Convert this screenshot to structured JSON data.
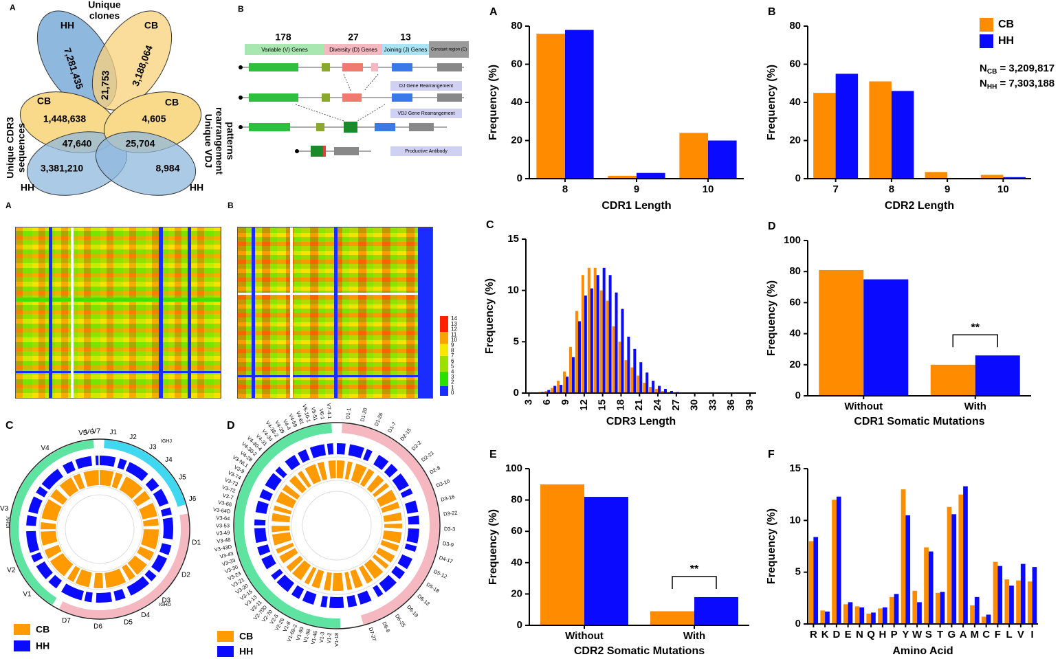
{
  "chart_data": [
    {
      "type": "bar",
      "label": "A",
      "categories": [
        "8",
        "9",
        "10"
      ],
      "series": [
        {
          "color": "#ff8c00",
          "values": [
            76,
            1.5,
            24
          ]
        },
        {
          "color": "#0a0aff",
          "values": [
            78,
            3,
            20
          ]
        }
      ],
      "ylim": [
        0,
        80
      ],
      "yticks": [
        0,
        20,
        40,
        60,
        80
      ],
      "ylabel": "Frequency (%)",
      "xlabel": "CDR1 Length"
    },
    {
      "type": "bar",
      "label": "B",
      "categories": [
        "7",
        "8",
        "9",
        "10"
      ],
      "series": [
        {
          "name": "CB",
          "color": "#ff8c00",
          "values": [
            45,
            51,
            3.5,
            2
          ]
        },
        {
          "name": "HH",
          "color": "#0a0aff",
          "values": [
            55,
            46,
            0.3,
            0.8
          ]
        }
      ],
      "ylim": [
        0,
        80
      ],
      "yticks": [
        0,
        20,
        40,
        60,
        80
      ],
      "ylabel": "Frequency (%)",
      "xlabel": "CDR2 Length",
      "legend": "upper right",
      "annotations": [
        {
          "base": "N",
          "sub": "CB",
          "text": " = 3,209,817"
        },
        {
          "base": "N",
          "sub": "HH",
          "text": " = 7,303,188"
        }
      ]
    },
    {
      "type": "bar",
      "label": "C",
      "x": [
        4,
        5,
        6,
        7,
        8,
        9,
        10,
        11,
        12,
        13,
        14,
        15,
        16,
        17,
        18,
        19,
        20,
        21,
        22,
        23,
        24,
        25,
        26,
        27,
        28,
        29,
        30
      ],
      "series": [
        {
          "color": "#ff8c00",
          "values": [
            0.05,
            0.1,
            0.2,
            0.5,
            1.2,
            2.1,
            4.5,
            8,
            11.5,
            12.2,
            12.2,
            10,
            9,
            6.5,
            5,
            3.2,
            2.5,
            1.7,
            1,
            0.6,
            0.4,
            0.2,
            0.1,
            0.05,
            0.02,
            0.01,
            0.01
          ]
        },
        {
          "color": "#0a0aff",
          "values": [
            0.05,
            0.1,
            0.3,
            0.7,
            0.8,
            1.6,
            3.5,
            7,
            9.5,
            10.2,
            11.5,
            12.2,
            11.5,
            9.8,
            8.2,
            5.5,
            4.3,
            3,
            2,
            1.2,
            0.7,
            0.4,
            0.2,
            0.1,
            0.05,
            0.02,
            0.01
          ]
        }
      ],
      "xlim": [
        2.5,
        40
      ],
      "xticks": [
        3,
        6,
        9,
        12,
        15,
        18,
        21,
        24,
        27,
        30,
        33,
        36,
        39
      ],
      "xtick_rotation": 90,
      "ylim": [
        0,
        15
      ],
      "yticks": [
        0,
        5,
        10,
        15
      ],
      "ylabel": "Frequency (%)",
      "xlabel": "CDR3 Length"
    },
    {
      "type": "bar",
      "label": "D",
      "categories": [
        "Without",
        "With"
      ],
      "series": [
        {
          "color": "#ff8c00",
          "values": [
            81,
            20
          ]
        },
        {
          "color": "#0a0aff",
          "values": [
            75,
            26
          ]
        }
      ],
      "ylim": [
        0,
        100
      ],
      "yticks": [
        0,
        20,
        40,
        60,
        80,
        100
      ],
      "ylabel": "Frequency (%)",
      "xlabel": "CDR1 Somatic Mutations",
      "significance": [
        {
          "text": "**",
          "category": "With"
        }
      ]
    },
    {
      "type": "bar",
      "label": "E",
      "categories": [
        "Without",
        "With"
      ],
      "series": [
        {
          "color": "#ff8c00",
          "values": [
            90,
            9
          ]
        },
        {
          "color": "#0a0aff",
          "values": [
            82,
            18
          ]
        }
      ],
      "ylim": [
        0,
        100
      ],
      "yticks": [
        0,
        20,
        40,
        60,
        80,
        100
      ],
      "ylabel": "Frequency (%)",
      "xlabel": "CDR2 Somatic Mutations",
      "significance": [
        {
          "text": "**",
          "category": "With"
        }
      ]
    },
    {
      "type": "bar",
      "label": "F",
      "categories": [
        "R",
        "K",
        "D",
        "E",
        "N",
        "Q",
        "H",
        "P",
        "Y",
        "W",
        "S",
        "T",
        "G",
        "A",
        "M",
        "C",
        "F",
        "L",
        "V",
        "I"
      ],
      "series": [
        {
          "color": "#ff8c00",
          "values": [
            8,
            1.3,
            12,
            1.9,
            1.7,
            1,
            1.5,
            2.6,
            13,
            3.2,
            7.4,
            3,
            11.3,
            12.5,
            1.8,
            0.7,
            6,
            4.3,
            4.2,
            4.1
          ]
        },
        {
          "color": "#0a0aff",
          "values": [
            8.4,
            1.2,
            12.3,
            2.1,
            1.6,
            1.1,
            1.6,
            2.9,
            10.5,
            2.1,
            7,
            3.1,
            10.6,
            13.3,
            2.6,
            0.9,
            5.6,
            3.7,
            5.8,
            5.5
          ]
        }
      ],
      "ylim": [
        0,
        15
      ],
      "yticks": [
        0,
        5,
        10,
        15
      ],
      "ylabel": "Frequency (%)",
      "xlabel": "Amino Acid"
    }
  ],
  "venn": {
    "label": "A",
    "clones": {
      "title": [
        "Unique",
        "clones"
      ],
      "left": "HH",
      "right": "CB",
      "left_only": "7,281,435",
      "both": "21,753",
      "right_only": "3,188,064"
    },
    "cdr3": {
      "title": [
        "Unique CDR3",
        "sequences"
      ],
      "top": "CB",
      "top_only": "1,448,638",
      "both": "47,640",
      "bottom_only": "3,381,210",
      "bottom": "HH"
    },
    "vdj": {
      "title": [
        "Unique VDJ",
        "rearrangement",
        "patterns"
      ],
      "top": "CB",
      "top_only": "4,605",
      "both": "25,704",
      "bottom_only": "8,984",
      "bottom": "HH"
    }
  },
  "gene_diagram": {
    "label": "B",
    "counts": [
      "178",
      "27",
      "13"
    ],
    "segments": [
      "Variable (V) Genes",
      "Diversity (D) Genes",
      "Joining (J) Genes",
      "Constant region (C)"
    ],
    "steps": [
      "DJ Gene Rearrangement",
      "VDJ Gene Rearrangement",
      "Productive Antibody"
    ]
  },
  "heatmaps": {
    "labels": [
      "A",
      "B"
    ],
    "colorbar_ticks": [
      "14",
      "13",
      "12",
      "11",
      "10",
      "9",
      "8",
      "7",
      "6",
      "5",
      "4",
      "3",
      "2",
      "1",
      "0"
    ]
  },
  "circos": [
    {
      "label": "C",
      "segments": [
        "V1",
        "V2",
        "V3",
        "V4",
        "V5",
        "V6",
        "V7",
        "J1",
        "J2",
        "J3",
        "J4",
        "J5",
        "J6",
        "D1",
        "D2",
        "D3",
        "D4",
        "D5",
        "D6",
        "D7"
      ],
      "groups": [
        "IGHV",
        "IGHJ",
        "IGHD"
      ],
      "legend": [
        "CB",
        "HH"
      ]
    },
    {
      "label": "D",
      "segments": [
        "D1-1",
        "D1-20",
        "D1-26",
        "D1-7",
        "D2-15",
        "D2-2",
        "D2-21",
        "D2-8",
        "D3-10",
        "D3-16",
        "D3-22",
        "D3-3",
        "D3-9",
        "D4-17",
        "D5-12",
        "D5-18",
        "D6-13",
        "D6-19",
        "D6-25",
        "D6-6",
        "D7-27",
        "V1-18",
        "V1-2",
        "V1-3",
        "V1-46",
        "V1-58",
        "V1-69",
        "V1-69-2",
        "V1-8",
        "V2-26",
        "V2-5",
        "V2-70",
        "V2-70D",
        "V3-11",
        "V3-13",
        "V3-15",
        "V3-20",
        "V3-21",
        "V3-23",
        "V3-30",
        "V3-33",
        "V3-43",
        "V3-43D",
        "V3-48",
        "V3-49",
        "V3-53",
        "V3-64",
        "V3-64D",
        "V3-66",
        "V3-7",
        "V3-72",
        "V3-73",
        "V3-74",
        "V3-9",
        "V3-NL1",
        "V4-28",
        "V4-30-2",
        "V4-30-4",
        "V4-31",
        "V4-34",
        "V4-38-2",
        "V4-39",
        "V4-4",
        "V4-59",
        "V4-61",
        "V5-10-1",
        "V5-51",
        "V6-1",
        "V7-4-1"
      ],
      "legend": [
        "CB",
        "HH"
      ]
    }
  ]
}
